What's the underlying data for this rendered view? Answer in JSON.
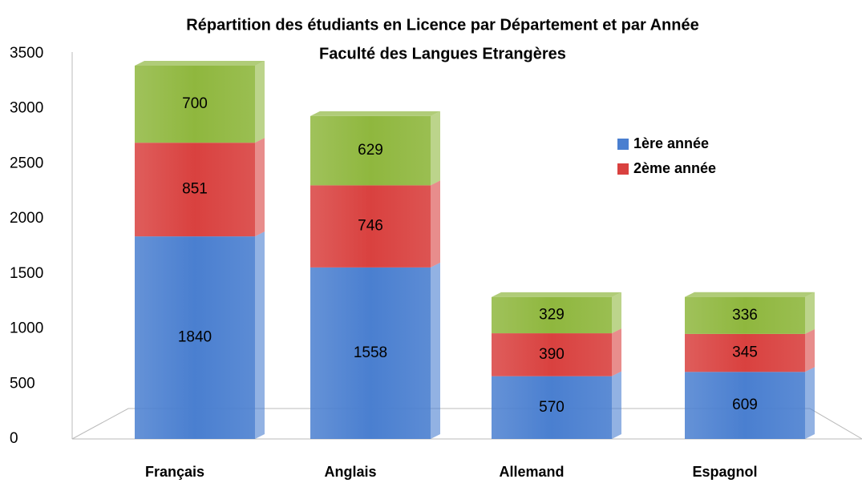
{
  "chart_data": {
    "type": "bar",
    "stacked": true,
    "title": "Répartition des étudiants en Licence par Département et par Année",
    "subtitle": "Faculté des Langues Etrangères",
    "categories": [
      "Français",
      "Anglais",
      "Allemand",
      "Espagnol"
    ],
    "series": [
      {
        "name": "1ère année",
        "color": "#4a7fd0",
        "values": [
          1840,
          1558,
          570,
          609
        ]
      },
      {
        "name": "2ème année",
        "color": "#d9413f",
        "values": [
          851,
          746,
          390,
          345
        ]
      },
      {
        "color": "#8fb73e",
        "values": [
          700,
          629,
          329,
          336
        ]
      }
    ],
    "ylim": [
      0,
      3500
    ],
    "yticks": [
      0,
      500,
      1000,
      1500,
      2000,
      2500,
      3000,
      3500
    ],
    "legend": "right"
  }
}
